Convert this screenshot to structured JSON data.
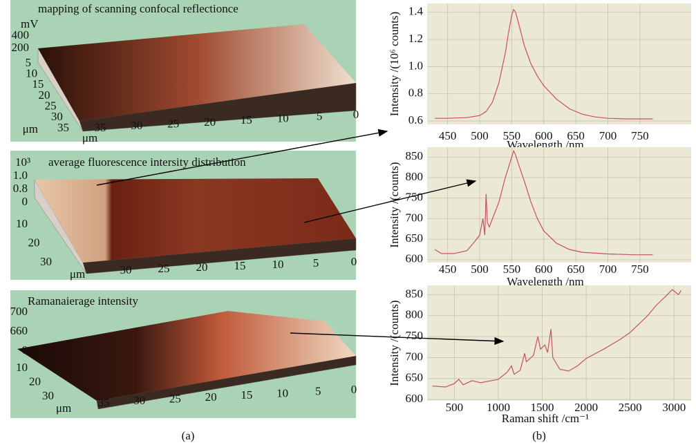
{
  "chart_data": [
    {
      "type": "surface",
      "title": "mapping of scanning confocal reflectionce",
      "zlabel": "mV",
      "zticks": [
        200,
        400
      ],
      "yticks": [
        5,
        10,
        15,
        20,
        25,
        30,
        35
      ],
      "ylabel": "μm",
      "xticks": [
        35,
        30,
        25,
        20,
        15,
        10,
        5,
        0
      ],
      "xlabel": "μm"
    },
    {
      "type": "surface",
      "title": "average fluorescence intersity distribution",
      "zlabel": "10³",
      "zticks": [
        {
          "value": 1,
          "label": "1.0"
        },
        0.8,
        0
      ],
      "yticks": [
        10,
        20,
        30
      ],
      "xticks": [
        30,
        25,
        20,
        15,
        10,
        5,
        0
      ],
      "xlabel": "μm"
    },
    {
      "type": "surface",
      "title": "Ramanaierage intensity",
      "zticks": [
        700,
        660,
        0
      ],
      "yticks": [
        10,
        20,
        30
      ],
      "xticks": [
        35,
        30,
        25,
        20,
        15,
        10,
        5,
        0
      ],
      "xlabel": "μm"
    },
    {
      "type": "line",
      "xlabel": "Wavelength /nm",
      "ylabel": "Intensity /(10⁶ counts)",
      "color": "#c8505a",
      "grid": true,
      "xlim": [
        418,
        830
      ],
      "ylim": [
        0.575,
        1.465
      ],
      "xticks": [
        450,
        500,
        550,
        600,
        650,
        700,
        750
      ],
      "yticks": [
        0.6,
        0.8,
        {
          "value": 1,
          "label": "1.0"
        },
        1.2,
        1.4
      ],
      "x": [
        430,
        450,
        480,
        500,
        510,
        520,
        530,
        540,
        545,
        550,
        553,
        556,
        560,
        570,
        580,
        590,
        600,
        620,
        640,
        660,
        680,
        700,
        730,
        770
      ],
      "values": [
        0.62,
        0.62,
        0.625,
        0.64,
        0.67,
        0.74,
        0.88,
        1.1,
        1.25,
        1.38,
        1.42,
        1.4,
        1.33,
        1.15,
        1.02,
        0.93,
        0.86,
        0.76,
        0.69,
        0.65,
        0.63,
        0.62,
        0.615,
        0.615
      ]
    },
    {
      "type": "line",
      "xlabel": "Wavelength /nm",
      "ylabel": "Intensity /(counts)",
      "color": "#c8505a",
      "grid": true,
      "xlim": [
        418,
        830
      ],
      "ylim": [
        593,
        874
      ],
      "xticks": [
        450,
        500,
        550,
        600,
        650,
        700,
        750
      ],
      "yticks": [
        600,
        650,
        700,
        750,
        800,
        850
      ],
      "x": [
        430,
        440,
        460,
        480,
        490,
        500,
        505,
        508,
        510,
        512,
        515,
        520,
        530,
        540,
        550,
        553,
        556,
        560,
        570,
        580,
        590,
        600,
        620,
        640,
        660,
        700,
        740,
        770
      ],
      "values": [
        625,
        615,
        615,
        622,
        640,
        660,
        700,
        660,
        760,
        690,
        680,
        700,
        740,
        800,
        850,
        865,
        855,
        835,
        790,
        740,
        700,
        670,
        640,
        625,
        618,
        614,
        612,
        612
      ]
    },
    {
      "type": "line",
      "xlabel": "Raman shift /cm⁻¹",
      "ylabel": "Intensity /(counts)",
      "color": "#c8505a",
      "grid": true,
      "xlim": [
        190,
        3195
      ],
      "ylim": [
        597,
        872
      ],
      "xticks": [
        500,
        1000,
        1500,
        2000,
        2500,
        3000
      ],
      "yticks": [
        600,
        650,
        700,
        750,
        800,
        850
      ],
      "x": [
        250,
        400,
        500,
        550,
        600,
        700,
        800,
        1000,
        1100,
        1150,
        1180,
        1250,
        1300,
        1320,
        1400,
        1450,
        1480,
        1530,
        1560,
        1600,
        1620,
        1700,
        1800,
        1900,
        2000,
        2200,
        2400,
        2500,
        2600,
        2700,
        2800,
        2900,
        2980,
        3050,
        3080
      ],
      "values": [
        632,
        630,
        638,
        648,
        635,
        645,
        640,
        648,
        665,
        680,
        660,
        670,
        710,
        690,
        705,
        750,
        720,
        730,
        712,
        768,
        700,
        672,
        668,
        680,
        698,
        720,
        745,
        760,
        780,
        800,
        825,
        845,
        862,
        850,
        860
      ]
    }
  ],
  "captions": [
    "(a)",
    "(b)"
  ]
}
